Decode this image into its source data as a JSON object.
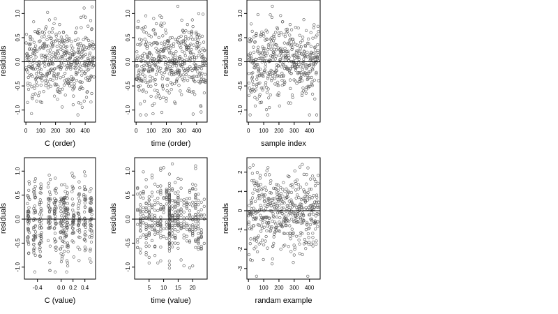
{
  "chart_data": [
    {
      "type": "scatter",
      "title": "",
      "xlabel": "C (order)",
      "ylabel": "residuals",
      "xlim": [
        -10,
        470
      ],
      "ylim": [
        -1.25,
        1.28
      ],
      "xticks": [
        0,
        100,
        200,
        300,
        400
      ],
      "xtick_labels": [
        "0",
        "100",
        "200",
        "300",
        "400"
      ],
      "yticks": [
        -1.0,
        -0.5,
        0.0,
        0.5,
        1.0
      ],
      "ytick_labels": [
        "-1.0",
        "-0.5",
        "0.0",
        "0.5",
        "1.0"
      ],
      "hline": 0,
      "grid": false,
      "n_points": 460,
      "x_range": [
        1,
        460
      ],
      "y_range": [
        -1.1,
        1.15
      ],
      "marker": "open-circle",
      "marker_color": "#555555"
    },
    {
      "type": "scatter",
      "title": "",
      "xlabel": "time (order)",
      "ylabel": "residuals",
      "xlim": [
        -10,
        470
      ],
      "ylim": [
        -1.25,
        1.28
      ],
      "xticks": [
        0,
        100,
        200,
        300,
        400
      ],
      "xtick_labels": [
        "0",
        "100",
        "200",
        "300",
        "400"
      ],
      "yticks": [
        -1.0,
        -0.5,
        0.0,
        0.5,
        1.0
      ],
      "ytick_labels": [
        "-1.0",
        "-0.5",
        "0.0",
        "0.5",
        "1.0"
      ],
      "hline": 0,
      "grid": false,
      "n_points": 460,
      "x_range": [
        1,
        460
      ],
      "y_range": [
        -1.1,
        1.15
      ],
      "marker": "open-circle",
      "marker_color": "#555555"
    },
    {
      "type": "scatter",
      "title": "",
      "xlabel": "sample index",
      "ylabel": "residuals",
      "xlim": [
        -10,
        470
      ],
      "ylim": [
        -1.25,
        1.28
      ],
      "xticks": [
        0,
        100,
        200,
        300,
        400
      ],
      "xtick_labels": [
        "0",
        "100",
        "200",
        "300",
        "400"
      ],
      "yticks": [
        -1.0,
        -0.5,
        0.0,
        0.5,
        1.0
      ],
      "ytick_labels": [
        "-1.0",
        "-0.5",
        "0.0",
        "0.5",
        "1.0"
      ],
      "hline": 0,
      "grid": false,
      "n_points": 460,
      "x_range": [
        1,
        460
      ],
      "y_range": [
        -1.1,
        1.15
      ],
      "marker": "open-circle",
      "marker_color": "#555555"
    },
    {
      "type": "scatter",
      "title": "",
      "xlabel": "C (value)",
      "ylabel": "residuals",
      "xlim": [
        -0.62,
        0.58
      ],
      "ylim": [
        -1.25,
        1.28
      ],
      "xticks": [
        -0.4,
        0.0,
        0.2,
        0.4
      ],
      "xtick_labels": [
        "-0.4",
        "0.0",
        "0.2",
        "0.4"
      ],
      "yticks": [
        -1.0,
        -0.5,
        0.0,
        0.5,
        1.0
      ],
      "ytick_labels": [
        "-1.0",
        "-0.5",
        "0.0",
        "0.5",
        "1.0"
      ],
      "hline": 0,
      "grid": false,
      "n_points": 460,
      "x_range": [
        -0.58,
        0.55
      ],
      "y_range": [
        -1.1,
        1.15
      ],
      "marker": "open-circle",
      "marker_color": "#555555"
    },
    {
      "type": "scatter",
      "title": "",
      "xlabel": "time (value)",
      "ylabel": "residuals",
      "xlim": [
        0,
        25
      ],
      "ylim": [
        -1.25,
        1.28
      ],
      "xticks": [
        5,
        10,
        15,
        20
      ],
      "xtick_labels": [
        "5",
        "10",
        "15",
        "20"
      ],
      "yticks": [
        -1.0,
        -0.5,
        0.0,
        0.5,
        1.0
      ],
      "ytick_labels": [
        "-1.0",
        "-0.5",
        "0.0",
        "0.5",
        "1.0"
      ],
      "hline": 0,
      "grid": false,
      "n_points": 460,
      "x_range": [
        1,
        24
      ],
      "y_range": [
        -1.1,
        1.15
      ],
      "marker": "open-circle",
      "marker_color": "#555555"
    },
    {
      "type": "scatter",
      "title": "",
      "xlabel": "randam example",
      "ylabel": "residuals",
      "xlim": [
        -10,
        470
      ],
      "ylim": [
        -3.55,
        2.75
      ],
      "xticks": [
        0,
        100,
        200,
        300,
        400
      ],
      "xtick_labels": [
        "0",
        "100",
        "200",
        "300",
        "400"
      ],
      "yticks": [
        -3,
        -2,
        -1,
        0,
        1,
        2
      ],
      "ytick_labels": [
        "-3",
        "-2",
        "-1",
        "0",
        "1",
        "2"
      ],
      "hline": 0,
      "grid": false,
      "n_points": 460,
      "x_range": [
        1,
        460
      ],
      "y_range": [
        -3.4,
        2.4
      ],
      "marker": "open-circle",
      "marker_color": "#555555"
    }
  ]
}
